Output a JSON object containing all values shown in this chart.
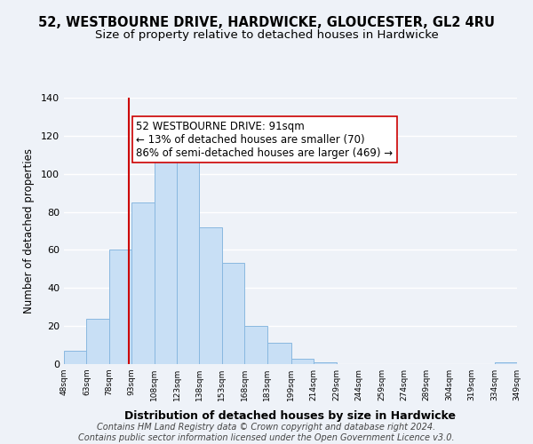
{
  "title": "52, WESTBOURNE DRIVE, HARDWICKE, GLOUCESTER, GL2 4RU",
  "subtitle": "Size of property relative to detached houses in Hardwicke",
  "xlabel": "Distribution of detached houses by size in Hardwicke",
  "ylabel": "Number of detached properties",
  "bin_edges": [
    48,
    63,
    78,
    93,
    108,
    123,
    138,
    153,
    168,
    183,
    199,
    214,
    229,
    244,
    259,
    274,
    289,
    304,
    319,
    334,
    349
  ],
  "bar_heights": [
    7,
    24,
    60,
    85,
    107,
    108,
    72,
    53,
    20,
    11,
    3,
    1,
    0,
    0,
    0,
    0,
    0,
    0,
    0,
    1
  ],
  "bar_color": "#c8dff5",
  "bar_edgecolor": "#89b8e0",
  "vline_x": 91,
  "vline_color": "#cc0000",
  "annotation_lines": [
    "52 WESTBOURNE DRIVE: 91sqm",
    "← 13% of detached houses are smaller (70)",
    "86% of semi-detached houses are larger (469) →"
  ],
  "annotation_fontsize": 8.5,
  "annotation_box_edgecolor": "#cc0000",
  "ylim": [
    0,
    140
  ],
  "tick_labels": [
    "48sqm",
    "63sqm",
    "78sqm",
    "93sqm",
    "108sqm",
    "123sqm",
    "138sqm",
    "153sqm",
    "168sqm",
    "183sqm",
    "199sqm",
    "214sqm",
    "229sqm",
    "244sqm",
    "259sqm",
    "274sqm",
    "289sqm",
    "304sqm",
    "319sqm",
    "334sqm",
    "349sqm"
  ],
  "footer_line1": "Contains HM Land Registry data © Crown copyright and database right 2024.",
  "footer_line2": "Contains public sector information licensed under the Open Government Licence v3.0.",
  "background_color": "#eef2f8",
  "grid_color": "#ffffff",
  "title_fontsize": 10.5,
  "subtitle_fontsize": 9.5,
  "xlabel_fontsize": 9,
  "ylabel_fontsize": 8.5,
  "footer_fontsize": 7
}
